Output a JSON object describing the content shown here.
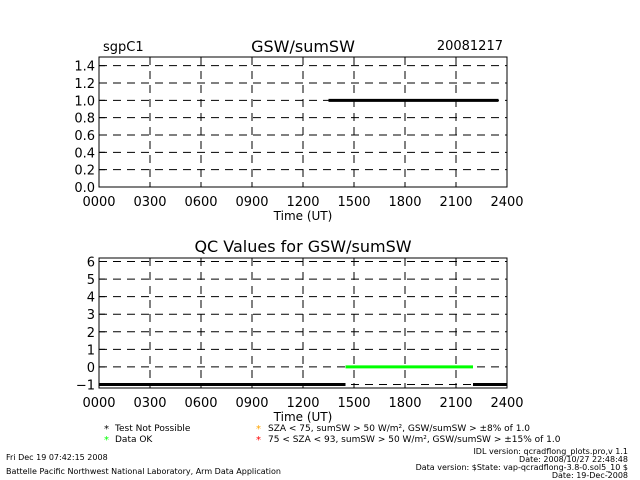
{
  "site": "sgpC1",
  "date": "20081217",
  "top_chart": {
    "title": "GSW/sumSW",
    "xlabel": "Time (UT)",
    "x_ticks": [
      "0000",
      "0300",
      "0600",
      "0900",
      "1200",
      "1500",
      "1800",
      "2100",
      "2400"
    ],
    "y_ticks": [
      "0.0",
      "0.2",
      "0.4",
      "0.6",
      "0.8",
      "1.0",
      "1.2",
      "1.4"
    ]
  },
  "bottom_chart": {
    "title": "QC Values for GSW/sumSW",
    "xlabel": "Time (UT)",
    "x_ticks": [
      "0000",
      "0300",
      "0600",
      "0900",
      "1200",
      "1500",
      "1800",
      "2100",
      "2400"
    ],
    "y_ticks": [
      "−1",
      "0",
      "1",
      "2",
      "3",
      "4",
      "5",
      "6"
    ]
  },
  "legend": {
    "test_not_possible": "Test Not Possible",
    "data_ok": "Data OK",
    "yellow_rule": "SZA < 75, sumSW > 50 W/m², GSW/sumSW > ±8% of 1.0",
    "red_rule": "75 < SZA < 93, sumSW > 50 W/m², GSW/sumSW > ±15% of 1.0",
    "colors": {
      "black": "#000000",
      "green": "#00ff00",
      "yellow": "#ffa500",
      "red": "#ff0000"
    }
  },
  "footer": {
    "generated": "Fri Dec 19 07:42:15 2008",
    "org": "Battelle Pacific Northwest National Laboratory, Arm Data Application",
    "idl_version": "IDL version: qcradflong_plots.pro,v 1.1",
    "idl_date": "Date: 2008/10/27 22:48:48",
    "data_version": "Data version: $State: vap-qcradflong-3.8-0.sol5_10 $",
    "data_date": "Date: 19-Dec-2008"
  },
  "chart_data": [
    {
      "type": "line",
      "title": "GSW/sumSW",
      "xlabel": "Time (UT)",
      "ylabel": "",
      "xlim": [
        0,
        24
      ],
      "ylim": [
        0,
        1.5
      ],
      "grid": true,
      "series": [
        {
          "x": [
            13.5,
            23.5
          ],
          "y": [
            1.0,
            1.0
          ],
          "color": "#000000"
        }
      ]
    },
    {
      "type": "line",
      "title": "QC Values for GSW/sumSW",
      "xlabel": "Time (UT)",
      "ylabel": "",
      "xlim": [
        0,
        24
      ],
      "ylim": [
        -1.2,
        6.2
      ],
      "grid": true,
      "series": [
        {
          "x": [
            0,
            14.5
          ],
          "y": [
            -1,
            -1
          ],
          "color": "#000000"
        },
        {
          "x": [
            14.5,
            22.0
          ],
          "y": [
            0,
            0
          ],
          "color": "#00ff00"
        },
        {
          "x": [
            22.0,
            24.0
          ],
          "y": [
            -1,
            -1
          ],
          "color": "#000000"
        }
      ]
    }
  ]
}
